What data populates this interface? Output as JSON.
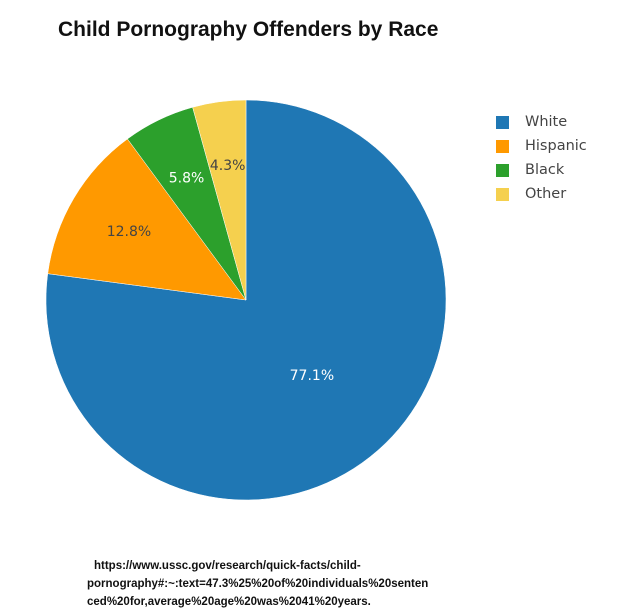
{
  "chart_data": {
    "type": "pie",
    "title": "Child Pornography Offenders by Race",
    "categories": [
      "White",
      "Hispanic",
      "Black",
      "Other"
    ],
    "values": [
      77.1,
      12.8,
      5.8,
      4.3
    ],
    "labels": [
      "77.1%",
      "12.8%",
      "5.8%",
      "4.3%"
    ],
    "colors": [
      "#1f77b4",
      "#ff9900",
      "#2ca02c",
      "#f5d04e"
    ],
    "label_colors": [
      "#ffffff",
      "#444444",
      "#ffffff",
      "#444444"
    ],
    "legend_placement": "right"
  },
  "source": {
    "line1": "https://www.ussc.gov/research/quick-facts/child-",
    "line2": "pornography#:~:text=47.3%25%20of%20individuals%20senten",
    "line3": "ced%20for,average%20age%20was%2041%20years."
  }
}
